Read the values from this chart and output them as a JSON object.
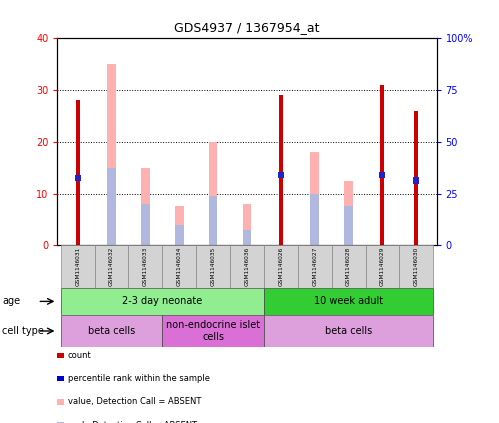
{
  "title": "GDS4937 / 1367954_at",
  "samples": [
    "GSM1146031",
    "GSM1146032",
    "GSM1146033",
    "GSM1146034",
    "GSM1146035",
    "GSM1146036",
    "GSM1146026",
    "GSM1146027",
    "GSM1146028",
    "GSM1146029",
    "GSM1146030"
  ],
  "count_values": [
    28,
    0,
    0,
    0,
    0,
    0,
    29,
    0,
    0,
    31,
    26
  ],
  "rank_values": [
    13,
    0,
    0,
    0,
    0,
    0,
    13.5,
    0,
    0,
    13.5,
    12.5
  ],
  "absent_value_values": [
    0,
    35,
    15,
    7.5,
    20,
    8,
    0,
    18,
    12.5,
    0,
    0
  ],
  "absent_rank_values": [
    0,
    15,
    8,
    4,
    9.5,
    3,
    0,
    10,
    7.5,
    0,
    0
  ],
  "ylim_left": [
    0,
    40
  ],
  "ylim_right": [
    0,
    100
  ],
  "left_yticks": [
    0,
    10,
    20,
    30,
    40
  ],
  "right_yticks": [
    0,
    25,
    50,
    75,
    100
  ],
  "left_yticklabels": [
    "0",
    "10",
    "20",
    "30",
    "40"
  ],
  "right_yticklabels": [
    "0",
    "25",
    "50",
    "75",
    "100%"
  ],
  "age_groups": [
    {
      "label": "2-3 day neonate",
      "start": 0,
      "end": 6,
      "color": "#90ee90"
    },
    {
      "label": "10 week adult",
      "start": 6,
      "end": 11,
      "color": "#32cd32"
    }
  ],
  "cell_type_groups": [
    {
      "label": "beta cells",
      "start": 0,
      "end": 3,
      "color": "#dda0dd"
    },
    {
      "label": "non-endocrine islet\ncells",
      "start": 3,
      "end": 6,
      "color": "#da70d6"
    },
    {
      "label": "beta cells",
      "start": 6,
      "end": 11,
      "color": "#dda0dd"
    }
  ],
  "legend_items": [
    {
      "color": "#cc0000",
      "label": "count"
    },
    {
      "color": "#0000cc",
      "label": "percentile rank within the sample"
    },
    {
      "color": "#ffb0b0",
      "label": "value, Detection Call = ABSENT"
    },
    {
      "color": "#b0b8e0",
      "label": "rank, Detection Call = ABSENT"
    }
  ],
  "count_color": "#cc0000",
  "rank_color": "#2222cc",
  "absent_value_color": "#ffb0b0",
  "absent_rank_color": "#b0b8e0",
  "bg_color": "#ffffff"
}
